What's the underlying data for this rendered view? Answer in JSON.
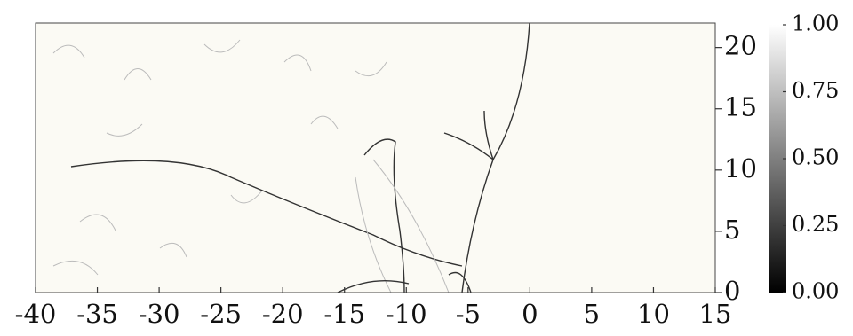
{
  "chart_data": {
    "type": "field",
    "xlim": [
      -40,
      15
    ],
    "xticks": [
      -40,
      -35,
      -30,
      -25,
      -20,
      -15,
      -10,
      -5,
      0,
      5,
      10,
      15
    ],
    "ylim": [
      0,
      22
    ],
    "yticks": [
      0,
      5,
      10,
      15,
      20
    ],
    "background": "#fbfaf4",
    "colorbar": {
      "clim": [
        0,
        1
      ],
      "colormap": [
        "#000000",
        "#ffffff"
      ],
      "ticks": [
        {
          "value": 0,
          "label": "0.00"
        },
        {
          "value": 0.25,
          "label": "0.25"
        },
        {
          "value": 0.5,
          "label": "0.50"
        },
        {
          "value": 0.75,
          "label": "0.75"
        },
        {
          "value": 1,
          "label": "1.00"
        }
      ]
    }
  }
}
